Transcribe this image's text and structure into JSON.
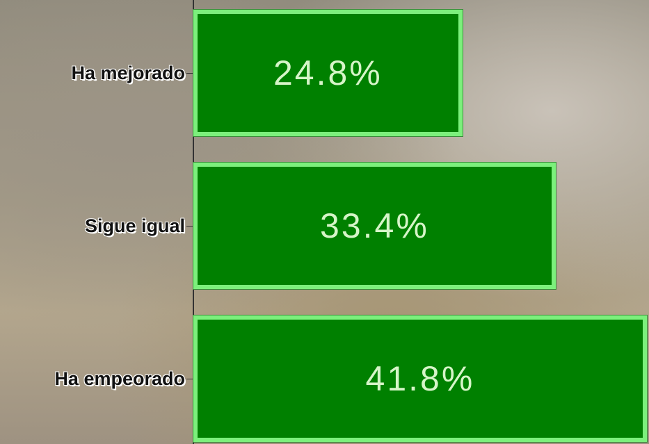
{
  "chart_data": {
    "type": "bar",
    "orientation": "horizontal",
    "categories": [
      "Ha mejorado",
      "Sigue igual",
      "Ha empeorado"
    ],
    "values": [
      24.8,
      33.4,
      41.8
    ],
    "value_labels": [
      "24.8%",
      "33.4%",
      "41.8%"
    ],
    "color": "#008000",
    "xlim": [
      0,
      42
    ]
  }
}
